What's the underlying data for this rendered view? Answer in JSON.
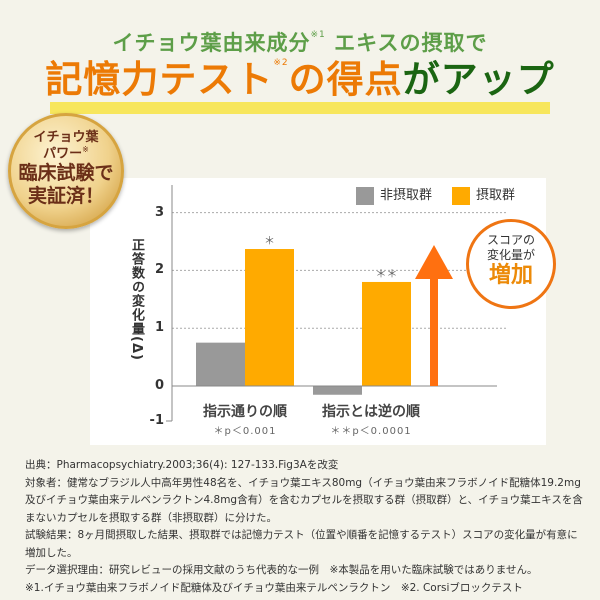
{
  "header": {
    "line1": "イチョウ葉由来成分",
    "line1_sup": "※1",
    "line1_rest": " エキスの摂取で",
    "line2_orange": "記憶力テスト",
    "line2_sup": "※2",
    "line2_orange2": "の得点",
    "line2_green": "がアップ"
  },
  "badge": {
    "line1": "イチョウ葉",
    "line2": "パワー",
    "sup": "※",
    "line3": "臨床試験で",
    "line4": "実証済！"
  },
  "callout": {
    "line1": "スコアの",
    "line2": "変化量が",
    "line3": "増加"
  },
  "chart_data": {
    "type": "bar",
    "ylabel": "正答数の変化量(Δ)",
    "ylim": [
      -1,
      3
    ],
    "yticks": [
      "3",
      "2",
      "1",
      "0",
      "-1"
    ],
    "grid": true,
    "legend_position": "top-right",
    "categories": [
      "指示通りの順",
      "指示とは逆の順"
    ],
    "pvalues": [
      "＊p＜0.001",
      "＊＊p＜0.0001"
    ],
    "significance": [
      "＊",
      "＊＊"
    ],
    "series": [
      {
        "name": "非摂取群",
        "color": "#999999",
        "values": [
          0.75,
          -0.25
        ]
      },
      {
        "name": "摂取群",
        "color": "#ffaa00",
        "values": [
          2.37,
          1.8
        ]
      }
    ],
    "arrow_color": "#ff7010"
  },
  "notes": [
    "出典：Pharmacopsychiatry.2003;36(4): 127-133.Fig3Aを改変",
    "対象者：健常なブラジル人中高年男性48名を、イチョウ葉エキス80mg（イチョウ葉由来フラボノイド配糖体19.2mg及びイチョウ葉由来テルペンラクトン4.8mg含有）を含むカプセルを摂取する群（摂取群）と、イチョウ葉エキスを含まないカプセルを摂取する群（非摂取群）に分けた。",
    "試験結果：8ヶ月間摂取した結果、摂取群では記憶力テスト（位置や順番を記憶するテスト）スコアの変化量が有意に増加した。",
    "データ選択理由：研究レビューの採用文献のうち代表的な一例　※本製品を用いた臨床試験ではありません。",
    "※1.イチョウ葉由来フラボノイド配糖体及びイチョウ葉由来テルペンラクトン　※2. Corsiブロックテスト"
  ]
}
